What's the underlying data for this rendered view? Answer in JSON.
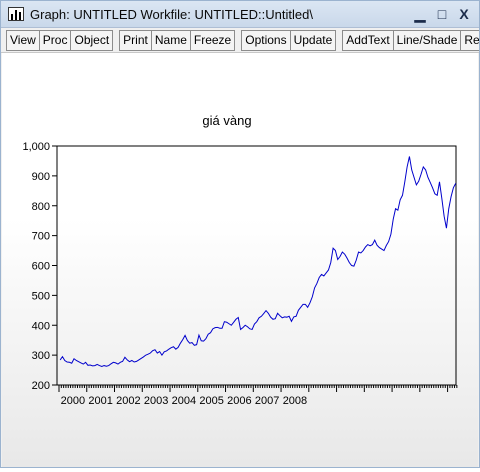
{
  "window": {
    "title": "Graph: UNTITLED   Workfile: UNTITLED::Untitled\\",
    "minimize_glyph": "▁",
    "maximize_glyph": "□",
    "close_glyph": "X"
  },
  "toolbar": {
    "groups": [
      [
        "View",
        "Proc",
        "Object"
      ],
      [
        "Print",
        "Name",
        "Freeze"
      ],
      [
        "Options",
        "Update"
      ],
      [
        "AddText",
        "Line/Shade",
        "Remo"
      ]
    ]
  },
  "chart_data": {
    "type": "line",
    "title": "giá vàng",
    "xlabel": "",
    "ylabel": "",
    "ylim": [
      200,
      1000
    ],
    "yticks": [
      200,
      300,
      400,
      500,
      600,
      700,
      800,
      900,
      1000
    ],
    "ytick_labels": [
      "200",
      "300",
      "400",
      "500",
      "600",
      "700",
      "800",
      "900",
      "1,000"
    ],
    "xtick_labels": [
      "2000",
      "2001",
      "2002",
      "2003",
      "2004",
      "2005",
      "2006",
      "2007",
      "2008"
    ],
    "x_start": "2000-01",
    "x_frequency": "monthly",
    "line_color": "#0000cc",
    "grid": false,
    "series": [
      {
        "values": [
          284,
          295,
          282,
          277,
          276,
          273,
          288,
          282,
          278,
          274,
          270,
          276,
          266,
          267,
          264,
          265,
          269,
          265,
          262,
          265,
          263,
          265,
          271,
          276,
          274,
          270,
          276,
          279,
          293,
          284,
          278,
          282,
          277,
          279,
          284,
          289,
          294,
          300,
          303,
          307,
          315,
          318,
          307,
          312,
          300,
          311,
          314,
          320,
          325,
          328,
          320,
          326,
          340,
          352,
          366,
          349,
          340,
          342,
          333,
          335,
          367,
          348,
          347,
          355,
          370,
          375,
          388,
          392,
          393,
          390,
          390,
          412,
          410,
          405,
          400,
          410,
          420,
          426,
          386,
          392,
          400,
          395,
          388,
          386,
          404,
          412,
          425,
          430,
          439,
          449,
          440,
          427,
          420,
          422,
          440,
          432,
          425,
          428,
          427,
          430,
          413,
          428,
          430,
          450,
          460,
          470,
          470,
          460,
          475,
          495,
          525,
          540,
          560,
          570,
          565,
          575,
          585,
          610,
          658,
          650,
          620,
          630,
          645,
          638,
          625,
          610,
          600,
          598,
          618,
          645,
          642,
          650,
          662,
          670,
          666,
          670,
          685,
          668,
          660,
          655,
          650,
          667,
          680,
          705,
          755,
          790,
          785,
          820,
          835,
          880,
          930,
          965,
          920,
          895,
          870,
          882,
          905,
          930,
          920,
          895,
          878,
          860,
          840,
          835,
          880,
          825,
          765,
          725,
          790,
          830,
          860,
          875
        ]
      }
    ]
  }
}
